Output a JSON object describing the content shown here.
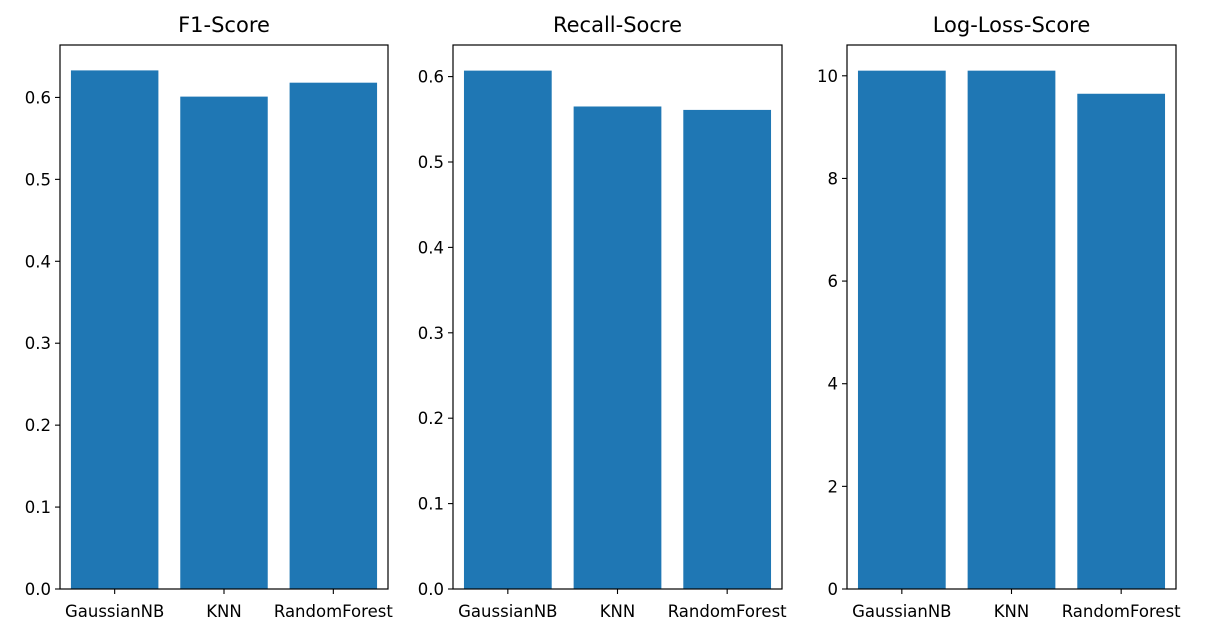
{
  "bar_color": "#1f77b4",
  "chart_data": [
    {
      "type": "bar",
      "title": "F1-Score",
      "categories": [
        "GaussianNB",
        "KNN",
        "RandomForest"
      ],
      "values": [
        0.633,
        0.601,
        0.618
      ],
      "ylim": [
        0,
        0.664
      ],
      "yticks": [
        "0.0",
        "0.1",
        "0.2",
        "0.3",
        "0.4",
        "0.5",
        "0.6"
      ],
      "ytick_values": [
        0,
        0.1,
        0.2,
        0.3,
        0.4,
        0.5,
        0.6
      ],
      "xlabel": "",
      "ylabel": "",
      "grid": false
    },
    {
      "type": "bar",
      "title": "Recall-Socre",
      "categories": [
        "GaussianNB",
        "KNN",
        "RandomForest"
      ],
      "values": [
        0.607,
        0.565,
        0.561
      ],
      "ylim": [
        0,
        0.637
      ],
      "yticks": [
        "0.0",
        "0.1",
        "0.2",
        "0.3",
        "0.4",
        "0.5",
        "0.6"
      ],
      "ytick_values": [
        0,
        0.1,
        0.2,
        0.3,
        0.4,
        0.5,
        0.6
      ],
      "xlabel": "",
      "ylabel": "",
      "grid": false
    },
    {
      "type": "bar",
      "title": "Log-Loss-Score",
      "categories": [
        "GaussianNB",
        "KNN",
        "RandomForest"
      ],
      "values": [
        10.1,
        10.1,
        9.65
      ],
      "ylim": [
        0,
        10.6
      ],
      "yticks": [
        "0",
        "2",
        "4",
        "6",
        "8",
        "10"
      ],
      "ytick_values": [
        0,
        2,
        4,
        6,
        8,
        10
      ],
      "xlabel": "",
      "ylabel": "",
      "grid": false
    }
  ]
}
